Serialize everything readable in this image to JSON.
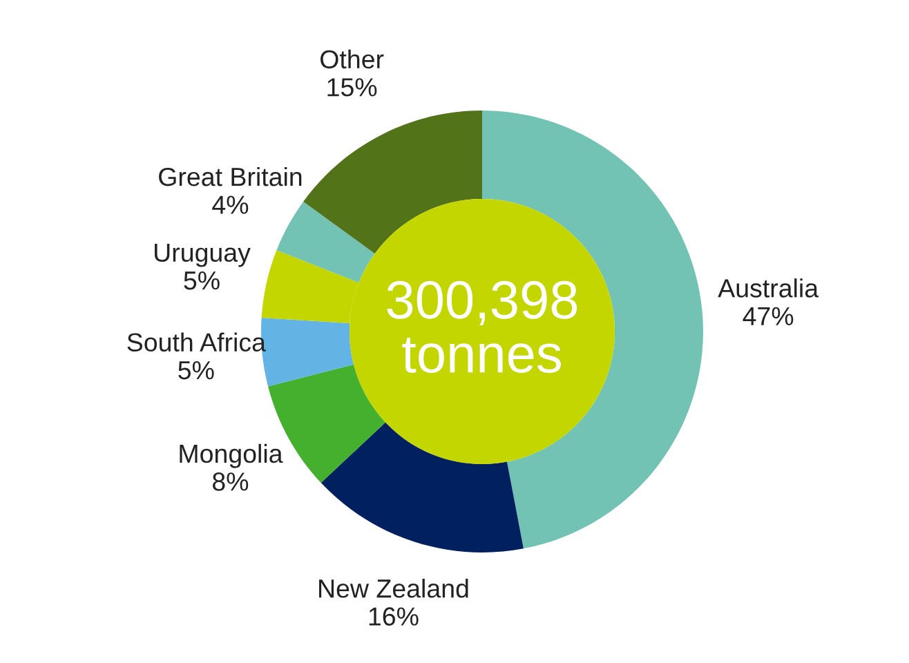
{
  "chart_data": {
    "type": "donut",
    "categories": [
      "Australia",
      "New Zealand",
      "Mongolia",
      "South Africa",
      "Uruguay",
      "Great Britain",
      "Other"
    ],
    "values": [
      47,
      16,
      8,
      5,
      5,
      4,
      15
    ],
    "value_labels": [
      "47%",
      "16%",
      "8%",
      "5%",
      "5%",
      "4%",
      "15%"
    ],
    "colors": [
      "#72c3b4",
      "#002060",
      "#44b02e",
      "#63b4e4",
      "#c4d600",
      "#72c3b4",
      "#527317"
    ],
    "annotations": [
      "300,398\ntonnes"
    ],
    "legend": false
  }
}
